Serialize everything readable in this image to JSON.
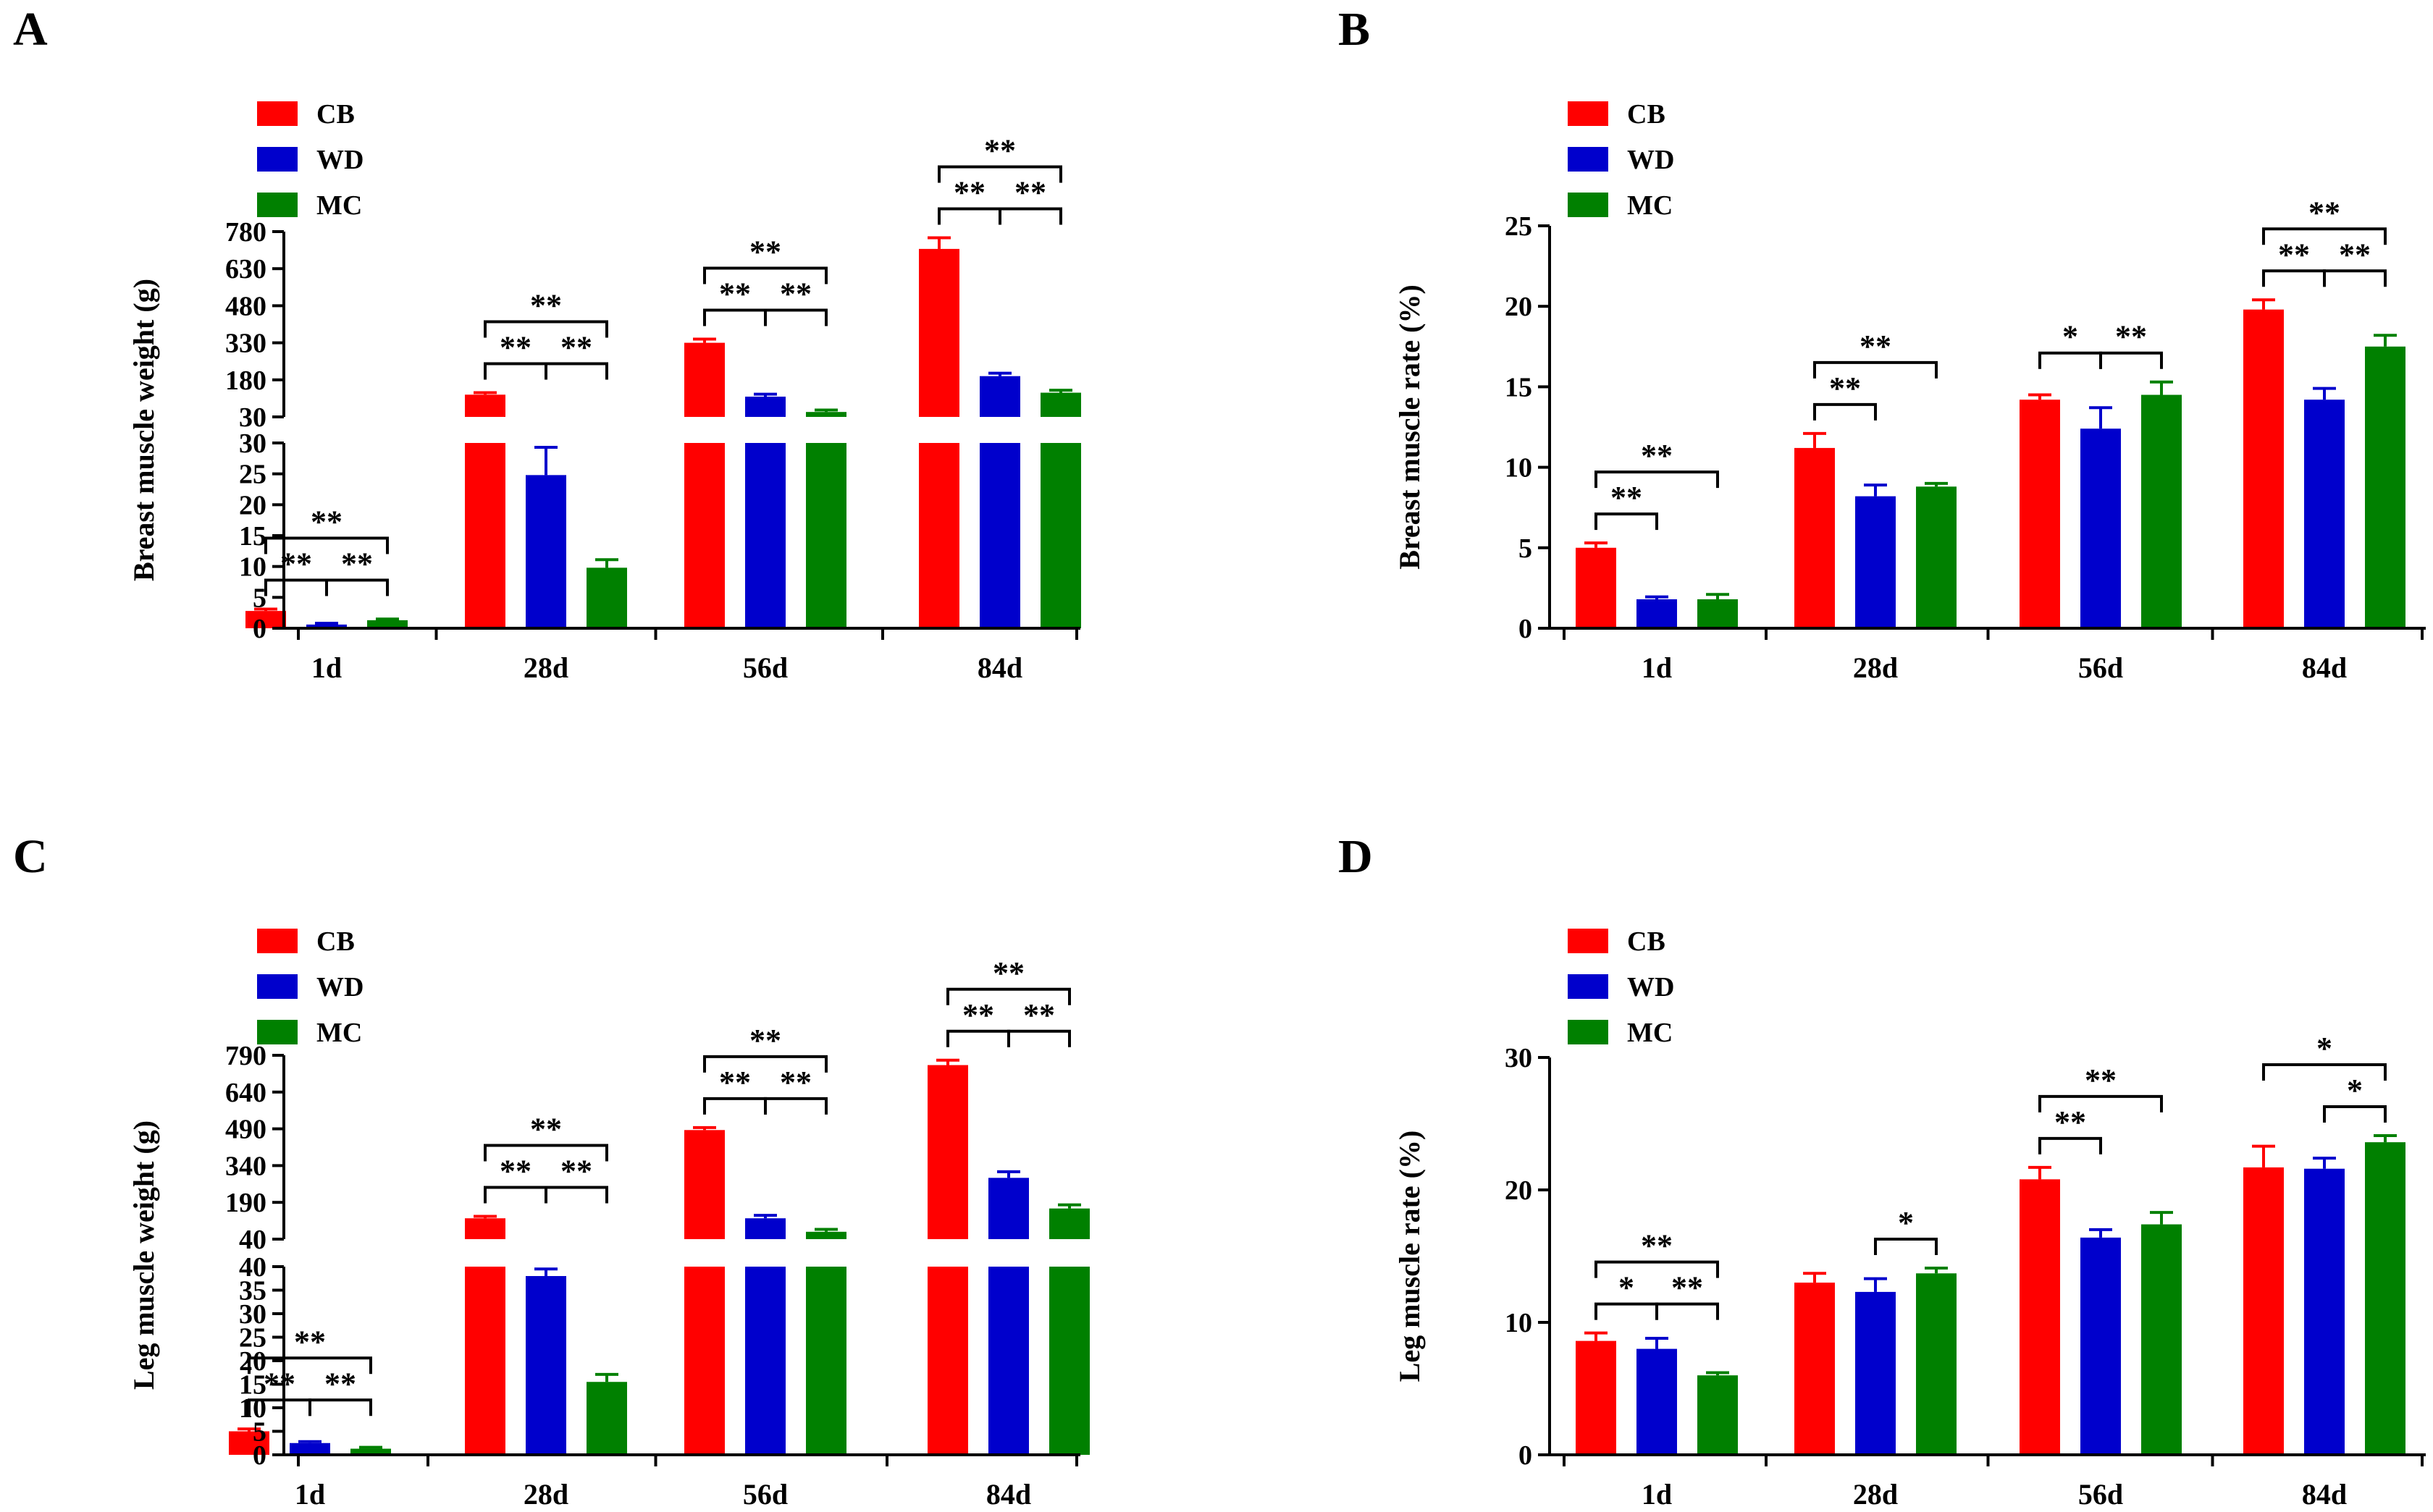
{
  "chart_data": [
    {
      "panel": "A",
      "type": "bar",
      "axis_break": true,
      "ylabel": "Breast muscle weight (g)",
      "categories": [
        "1d",
        "28d",
        "56d",
        "84d"
      ],
      "series": [
        {
          "name": "CB",
          "color": "#ff0000",
          "values": [
            2.8,
            120,
            330,
            710
          ],
          "errors": [
            0.3,
            8,
            15,
            45
          ]
        },
        {
          "name": "WD",
          "color": "#0000cc",
          "values": [
            0.6,
            24.8,
            112,
            195
          ],
          "errors": [
            0.2,
            4.5,
            10,
            12
          ]
        },
        {
          "name": "MC",
          "color": "#008000",
          "values": [
            1.3,
            9.8,
            50,
            128
          ],
          "errors": [
            0.2,
            1.3,
            8,
            10
          ]
        }
      ],
      "y_upper_ticks": [
        "30",
        "180",
        "330",
        "480",
        "630",
        "780"
      ],
      "y_upper_range": [
        30,
        780
      ],
      "y_lower_ticks": [
        "0",
        "5",
        "10",
        "15",
        "20",
        "25",
        "30"
      ],
      "y_lower_range": [
        0,
        30
      ],
      "significance": [
        {
          "group": 0,
          "from": 0,
          "to": 1,
          "level": 0,
          "label": "**"
        },
        {
          "group": 0,
          "from": 1,
          "to": 2,
          "level": 0,
          "label": "**"
        },
        {
          "group": 0,
          "from": 0,
          "to": 2,
          "level": 1,
          "label": "**"
        },
        {
          "group": 1,
          "from": 0,
          "to": 1,
          "level": 0,
          "label": "**"
        },
        {
          "group": 1,
          "from": 1,
          "to": 2,
          "level": 0,
          "label": "**"
        },
        {
          "group": 1,
          "from": 0,
          "to": 2,
          "level": 1,
          "label": "**"
        },
        {
          "group": 2,
          "from": 0,
          "to": 1,
          "level": 0,
          "label": "**"
        },
        {
          "group": 2,
          "from": 1,
          "to": 2,
          "level": 0,
          "label": "**"
        },
        {
          "group": 2,
          "from": 0,
          "to": 2,
          "level": 1,
          "label": "**"
        },
        {
          "group": 3,
          "from": 0,
          "to": 1,
          "level": 0,
          "label": "**"
        },
        {
          "group": 3,
          "from": 1,
          "to": 2,
          "level": 0,
          "label": "**"
        },
        {
          "group": 3,
          "from": 0,
          "to": 2,
          "level": 1,
          "label": "**"
        }
      ]
    },
    {
      "panel": "B",
      "type": "bar",
      "axis_break": false,
      "ylabel": "Breast muscle rate (%)",
      "categories": [
        "1d",
        "28d",
        "56d",
        "84d"
      ],
      "series": [
        {
          "name": "CB",
          "color": "#ff0000",
          "values": [
            5.0,
            11.2,
            14.2,
            19.8
          ],
          "errors": [
            0.3,
            0.9,
            0.3,
            0.6
          ]
        },
        {
          "name": "WD",
          "color": "#0000cc",
          "values": [
            1.8,
            8.2,
            12.4,
            14.2
          ],
          "errors": [
            0.15,
            0.7,
            1.3,
            0.7
          ]
        },
        {
          "name": "MC",
          "color": "#008000",
          "values": [
            1.8,
            8.8,
            14.5,
            17.5
          ],
          "errors": [
            0.3,
            0.2,
            0.8,
            0.7
          ]
        }
      ],
      "y_ticks": [
        "0",
        "5",
        "10",
        "15",
        "20",
        "25"
      ],
      "y_range": [
        0,
        25
      ],
      "significance": [
        {
          "group": 0,
          "from": 0,
          "to": 1,
          "level": 0,
          "label": "**"
        },
        {
          "group": 0,
          "from": 0,
          "to": 2,
          "level": 1,
          "label": "**"
        },
        {
          "group": 1,
          "from": 0,
          "to": 1,
          "level": 0,
          "label": "**"
        },
        {
          "group": 1,
          "from": 0,
          "to": 2,
          "level": 1,
          "label": "**"
        },
        {
          "group": 2,
          "from": 0,
          "to": 1,
          "level": 0,
          "label": "*"
        },
        {
          "group": 2,
          "from": 1,
          "to": 2,
          "level": 0,
          "label": "**"
        },
        {
          "group": 3,
          "from": 0,
          "to": 1,
          "level": 0,
          "label": "**"
        },
        {
          "group": 3,
          "from": 1,
          "to": 2,
          "level": 0,
          "label": "**"
        },
        {
          "group": 3,
          "from": 0,
          "to": 2,
          "level": 1,
          "label": "**"
        }
      ]
    },
    {
      "panel": "C",
      "type": "bar",
      "axis_break": true,
      "ylabel": "Leg muscle weight (g)",
      "categories": [
        "1d",
        "28d",
        "56d",
        "84d"
      ],
      "series": [
        {
          "name": "CB",
          "color": "#ff0000",
          "values": [
            5.0,
            125,
            485,
            750
          ],
          "errors": [
            0.5,
            8,
            10,
            20
          ]
        },
        {
          "name": "WD",
          "color": "#0000cc",
          "values": [
            2.5,
            38,
            125,
            290
          ],
          "errors": [
            0.3,
            1.5,
            12,
            25
          ]
        },
        {
          "name": "MC",
          "color": "#008000",
          "values": [
            1.3,
            15.5,
            70,
            165
          ],
          "errors": [
            0.3,
            1.6,
            10,
            15
          ]
        }
      ],
      "y_upper_ticks": [
        "40",
        "190",
        "340",
        "490",
        "640",
        "790"
      ],
      "y_upper_range": [
        40,
        790
      ],
      "y_lower_ticks": [
        "0",
        "5",
        "10",
        "15",
        "20",
        "25",
        "30",
        "35",
        "40"
      ],
      "y_lower_range": [
        0,
        40
      ],
      "significance": [
        {
          "group": 0,
          "from": 0,
          "to": 1,
          "level": 0,
          "label": "**"
        },
        {
          "group": 0,
          "from": 1,
          "to": 2,
          "level": 0,
          "label": "**"
        },
        {
          "group": 0,
          "from": 0,
          "to": 2,
          "level": 1,
          "label": "**"
        },
        {
          "group": 1,
          "from": 0,
          "to": 1,
          "level": 0,
          "label": "**"
        },
        {
          "group": 1,
          "from": 1,
          "to": 2,
          "level": 0,
          "label": "**"
        },
        {
          "group": 1,
          "from": 0,
          "to": 2,
          "level": 1,
          "label": "**"
        },
        {
          "group": 2,
          "from": 0,
          "to": 1,
          "level": 0,
          "label": "**"
        },
        {
          "group": 2,
          "from": 1,
          "to": 2,
          "level": 0,
          "label": "**"
        },
        {
          "group": 2,
          "from": 0,
          "to": 2,
          "level": 1,
          "label": "**"
        },
        {
          "group": 3,
          "from": 0,
          "to": 1,
          "level": 0,
          "label": "**"
        },
        {
          "group": 3,
          "from": 1,
          "to": 2,
          "level": 0,
          "label": "**"
        },
        {
          "group": 3,
          "from": 0,
          "to": 2,
          "level": 1,
          "label": "**"
        }
      ]
    },
    {
      "panel": "D",
      "type": "bar",
      "axis_break": false,
      "ylabel": "Leg muscle rate (%)",
      "categories": [
        "1d",
        "28d",
        "56d",
        "84d"
      ],
      "series": [
        {
          "name": "CB",
          "color": "#ff0000",
          "values": [
            8.6,
            13.0,
            20.8,
            21.7
          ],
          "errors": [
            0.6,
            0.7,
            0.9,
            1.6
          ]
        },
        {
          "name": "WD",
          "color": "#0000cc",
          "values": [
            8.0,
            12.3,
            16.4,
            21.6
          ],
          "errors": [
            0.8,
            1.0,
            0.6,
            0.8
          ]
        },
        {
          "name": "MC",
          "color": "#008000",
          "values": [
            6.0,
            13.7,
            17.4,
            23.6
          ],
          "errors": [
            0.2,
            0.4,
            0.9,
            0.5
          ]
        }
      ],
      "y_ticks": [
        "0",
        "10",
        "20",
        "30"
      ],
      "y_range": [
        0,
        30
      ],
      "significance": [
        {
          "group": 0,
          "from": 0,
          "to": 1,
          "level": 0,
          "label": "*"
        },
        {
          "group": 0,
          "from": 1,
          "to": 2,
          "level": 0,
          "label": "**"
        },
        {
          "group": 0,
          "from": 0,
          "to": 2,
          "level": 1,
          "label": "**"
        },
        {
          "group": 1,
          "from": 1,
          "to": 2,
          "level": 0,
          "label": "*"
        },
        {
          "group": 2,
          "from": 0,
          "to": 1,
          "level": 0,
          "label": "**"
        },
        {
          "group": 2,
          "from": 0,
          "to": 2,
          "level": 1,
          "label": "**"
        },
        {
          "group": 3,
          "from": 1,
          "to": 2,
          "level": 0,
          "label": "*"
        },
        {
          "group": 3,
          "from": 0,
          "to": 2,
          "level": 1,
          "label": "*"
        }
      ]
    }
  ]
}
